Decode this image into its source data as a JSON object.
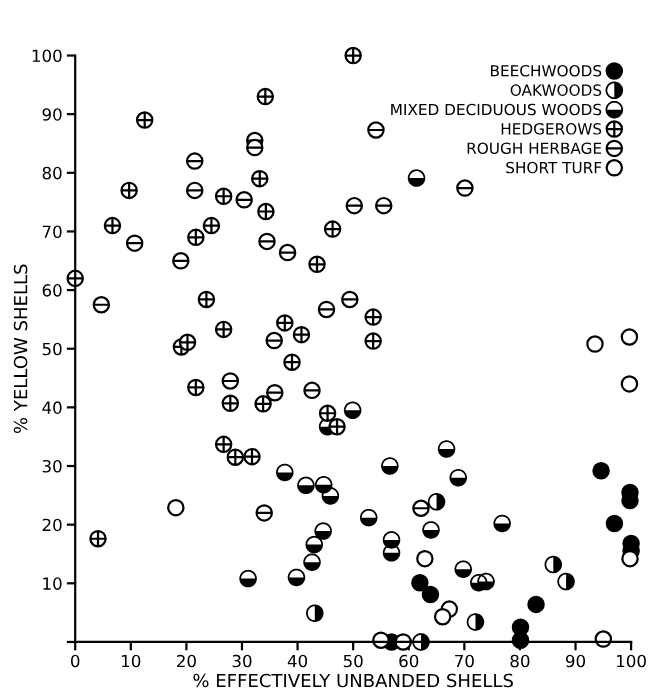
{
  "chart_data": {
    "type": "scatter",
    "xlabel": "% EFFECTIVELY UNBANDED SHELLS",
    "ylabel": "% YELLOW SHELLS",
    "xlim": [
      0,
      100
    ],
    "ylim": [
      0,
      100
    ],
    "xticks": [
      0,
      10,
      20,
      30,
      40,
      50,
      60,
      70,
      80,
      90,
      100
    ],
    "yticks": [
      {
        "value": 0,
        "label": null
      },
      10,
      20,
      30,
      40,
      50,
      60,
      70,
      80,
      90,
      100
    ],
    "grid": false,
    "legend": "top right",
    "series": [
      {
        "name": "BEECHWOODS",
        "color": "#000000",
        "x": [
          62,
          63.9,
          82.9,
          80.1,
          80.1,
          56.9,
          94.6,
          99.8,
          99.8,
          97,
          100,
          100
        ],
        "values": [
          10.1,
          8.1,
          6.4,
          2.5,
          0.3,
          0,
          29.2,
          25.5,
          24.1,
          20.2,
          16.8,
          15.5
        ]
      },
      {
        "name": "OAKWOODS",
        "color": "#000000",
        "x": [
          43.1,
          65,
          86,
          88.3,
          72,
          62.2
        ],
        "values": [
          4.9,
          23.9,
          13.2,
          10.3,
          3.4,
          0
        ]
      },
      {
        "name": "MIXED DECIDUOUS WOODS",
        "color": "#000000",
        "x": [
          61.4,
          37.7,
          41.5,
          44.7,
          45.9,
          44.6,
          43,
          42.6,
          31.1,
          39.8,
          45.4,
          49.9,
          56.6,
          66.8,
          68.9,
          64,
          52.8,
          76.8,
          56.9,
          56.9,
          69.8,
          72.6,
          73.9
        ],
        "values": [
          79.1,
          28.9,
          26.7,
          26.8,
          24.9,
          18.9,
          16.6,
          13.6,
          10.8,
          11,
          36.7,
          39.5,
          30,
          32.9,
          28,
          19.1,
          21.2,
          20.2,
          17.4,
          15.2,
          12.4,
          10.1,
          10.3
        ]
      },
      {
        "name": "HEDGEROWS",
        "color": "#000000",
        "x": [
          50,
          12.5,
          9.7,
          6.7,
          21.7,
          24.5,
          26.7,
          34.2,
          33.2,
          34.3,
          43.5,
          46.3,
          23.6,
          26.7,
          37.7,
          40.7,
          19.1,
          20.2,
          53.6,
          53.6,
          21.7,
          27.9,
          39,
          33.8,
          26.7,
          28.8,
          31.8,
          4.1,
          45.4,
          47.1
        ],
        "values": [
          100,
          89,
          77,
          71,
          69,
          71,
          76,
          93,
          79,
          73.4,
          64.4,
          70.4,
          58.4,
          53.3,
          54.4,
          52.4,
          50.3,
          51.1,
          55.4,
          51.3,
          43.4,
          40.7,
          47.7,
          40.6,
          33.7,
          31.5,
          31.6,
          17.6,
          39,
          36.7
        ]
      },
      {
        "name": "ROUGH HERBAGE",
        "color": "#000000",
        "x": [
          0,
          4.7,
          10.7,
          21.5,
          21.5,
          19,
          30.4,
          32.3,
          32.3,
          34.5,
          38.2,
          45.2,
          49.4,
          35.8,
          54.1,
          70.1,
          50.2,
          55.5,
          27.9,
          35.9,
          42.6,
          34,
          62.2
        ],
        "values": [
          62,
          57.5,
          68,
          82,
          77,
          65,
          75.4,
          85.5,
          84.3,
          68.3,
          66.4,
          56.7,
          58.4,
          51.4,
          87.3,
          77.4,
          74.4,
          74.4,
          44.5,
          42.5,
          42.9,
          22,
          22.8
        ]
      },
      {
        "name": "SHORT TURF",
        "color": "#000000",
        "x": [
          93.5,
          99.7,
          99.7,
          18.1,
          62.9,
          67.3,
          66.1,
          55,
          59,
          95,
          99.8
        ],
        "values": [
          50.8,
          52,
          44,
          22.9,
          14.2,
          5.6,
          4.3,
          0.3,
          0,
          0.5,
          14.2
        ]
      }
    ]
  }
}
